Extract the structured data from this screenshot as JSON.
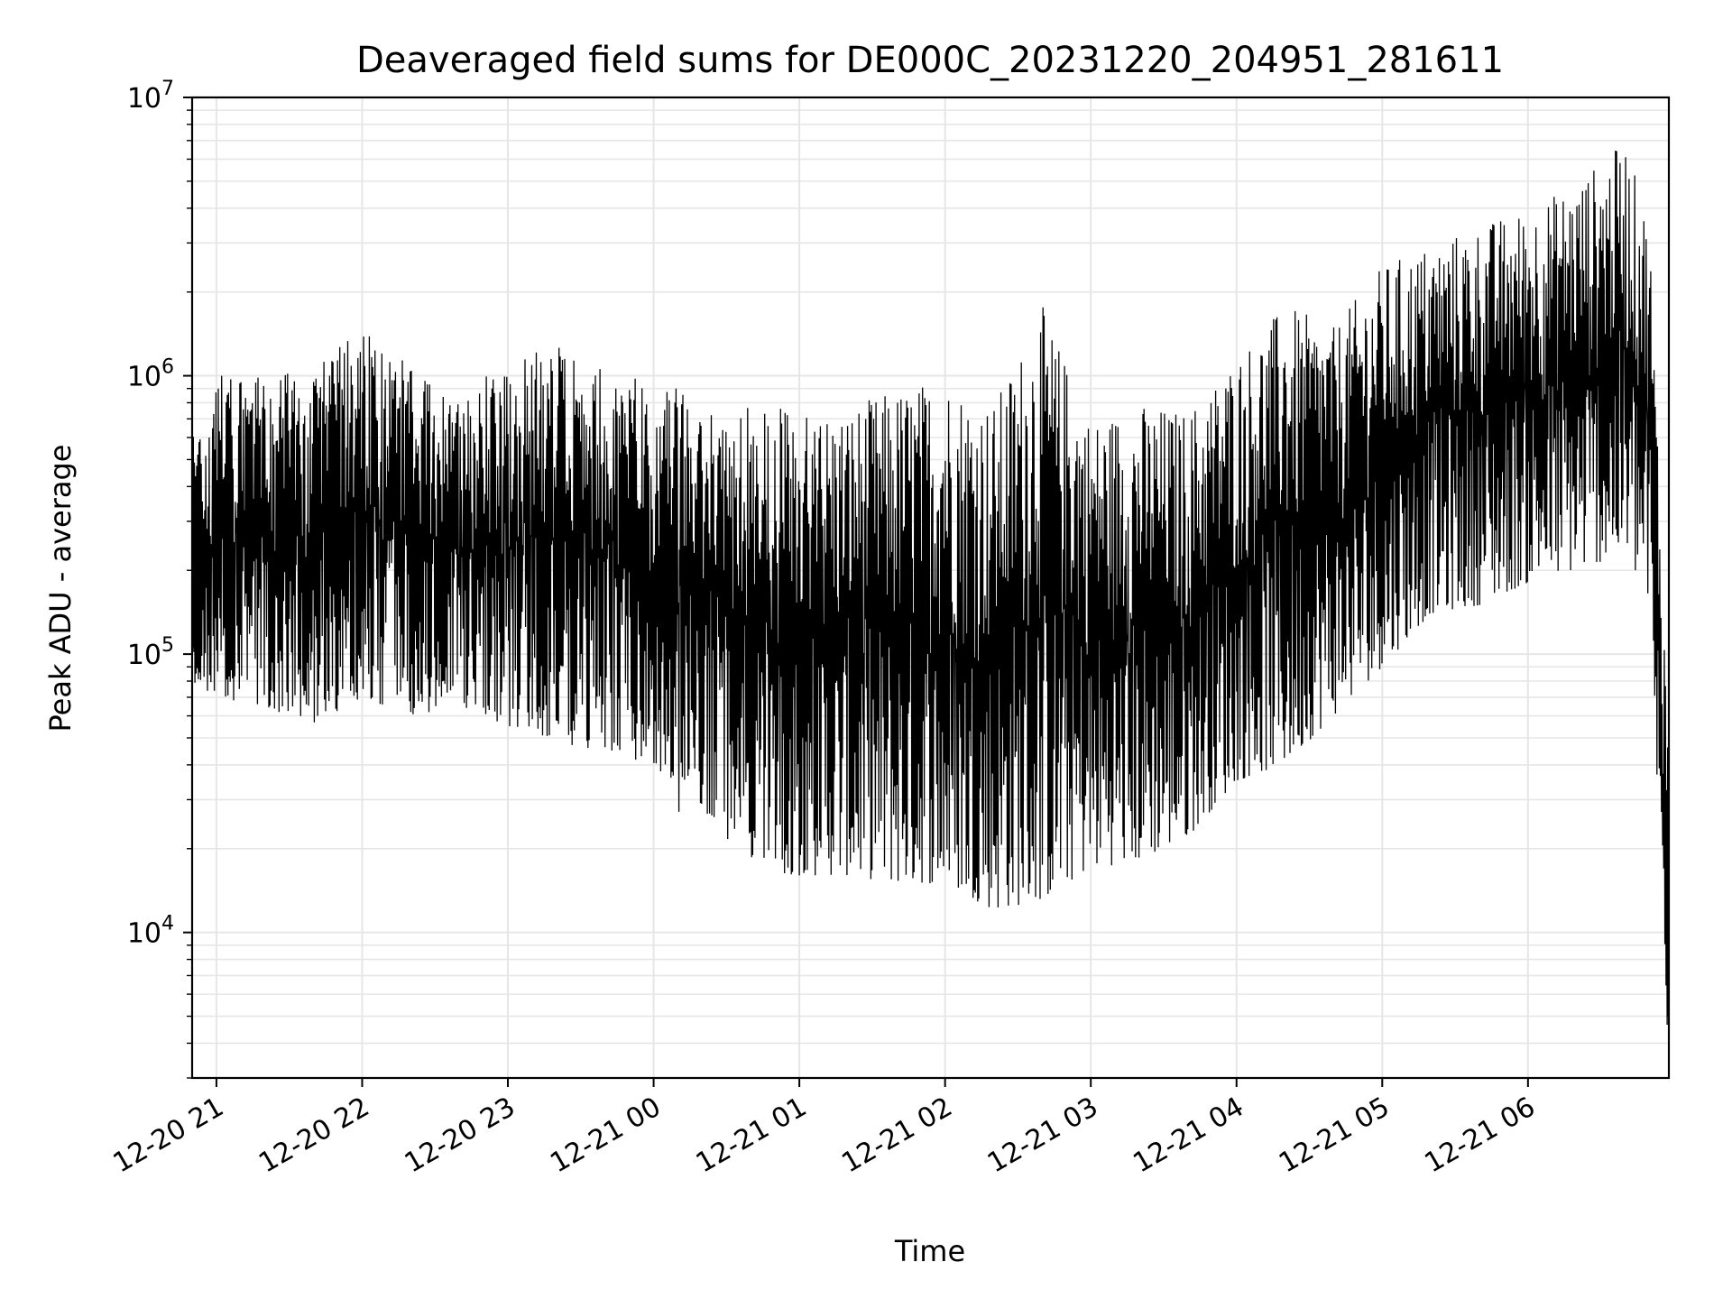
{
  "chart_data": {
    "type": "line",
    "title": "Deaveraged field sums for DE000C_20231220_204951_281611",
    "xlabel": "Time",
    "ylabel": "Peak ADU - average",
    "yscale": "log",
    "ylim": [
      3000,
      10000000
    ],
    "xlim": [
      "2023-12-20 20:50",
      "2023-12-21 06:58"
    ],
    "grid": true,
    "line_color": "#000000",
    "x_ticks": [
      {
        "t": "2023-12-20 21:00",
        "label": "12-20 21"
      },
      {
        "t": "2023-12-20 22:00",
        "label": "12-20 22"
      },
      {
        "t": "2023-12-20 23:00",
        "label": "12-20 23"
      },
      {
        "t": "2023-12-21 00:00",
        "label": "12-21 00"
      },
      {
        "t": "2023-12-21 01:00",
        "label": "12-21 01"
      },
      {
        "t": "2023-12-21 02:00",
        "label": "12-21 02"
      },
      {
        "t": "2023-12-21 03:00",
        "label": "12-21 03"
      },
      {
        "t": "2023-12-21 04:00",
        "label": "12-21 04"
      },
      {
        "t": "2023-12-21 05:00",
        "label": "12-21 05"
      },
      {
        "t": "2023-12-21 06:00",
        "label": "12-21 06"
      }
    ],
    "y_ticks": [
      {
        "value": 10000,
        "base": "10",
        "exp": "4"
      },
      {
        "value": 100000,
        "base": "10",
        "exp": "5"
      },
      {
        "value": 1000000,
        "base": "10",
        "exp": "6"
      },
      {
        "value": 10000000,
        "base": "10",
        "exp": "7"
      }
    ],
    "series": [
      {
        "envelope_note": "dense noisy trace; approximate lower/upper envelope read from the plot",
        "points": [
          [
            "2023-12-20 20:50",
            80000,
            600000
          ],
          [
            "2023-12-20 21:00",
            70000,
            1000000
          ],
          [
            "2023-12-20 21:20",
            65000,
            1000000
          ],
          [
            "2023-12-20 21:40",
            55000,
            1050000
          ],
          [
            "2023-12-20 22:00",
            70000,
            1500000
          ],
          [
            "2023-12-20 22:20",
            60000,
            1100000
          ],
          [
            "2023-12-20 22:40",
            65000,
            800000
          ],
          [
            "2023-12-20 23:00",
            55000,
            1200000
          ],
          [
            "2023-12-20 23:20",
            48000,
            1300000
          ],
          [
            "2023-12-20 23:40",
            45000,
            1100000
          ],
          [
            "2023-12-21 00:00",
            40000,
            950000
          ],
          [
            "2023-12-21 00:10",
            27000,
            900000
          ],
          [
            "2023-12-21 00:20",
            28000,
            800000
          ],
          [
            "2023-12-21 00:40",
            17000,
            780000
          ],
          [
            "2023-12-21 01:00",
            16000,
            750000
          ],
          [
            "2023-12-21 01:20",
            16000,
            780000
          ],
          [
            "2023-12-21 01:40",
            15000,
            900000
          ],
          [
            "2023-12-21 02:00",
            15000,
            1000000
          ],
          [
            "2023-12-21 02:20",
            12000,
            800000
          ],
          [
            "2023-12-21 02:40",
            13000,
            1800000
          ],
          [
            "2023-12-21 03:00",
            17000,
            700000
          ],
          [
            "2023-12-21 03:20",
            18000,
            800000
          ],
          [
            "2023-12-21 03:40",
            22000,
            750000
          ],
          [
            "2023-12-21 04:00",
            35000,
            1200000
          ],
          [
            "2023-12-21 04:20",
            40000,
            1800000
          ],
          [
            "2023-12-21 04:40",
            60000,
            1500000
          ],
          [
            "2023-12-21 05:00",
            90000,
            2500000
          ],
          [
            "2023-12-21 05:20",
            140000,
            3000000
          ],
          [
            "2023-12-21 05:40",
            150000,
            3500000
          ],
          [
            "2023-12-21 06:00",
            180000,
            4000000
          ],
          [
            "2023-12-21 06:20",
            200000,
            5000000
          ],
          [
            "2023-12-21 06:40",
            230000,
            7000000
          ],
          [
            "2023-12-21 06:50",
            150000,
            3500000
          ],
          [
            "2023-12-21 06:54",
            20000,
            500000
          ],
          [
            "2023-12-21 06:57",
            4500,
            80000
          ]
        ]
      }
    ]
  }
}
